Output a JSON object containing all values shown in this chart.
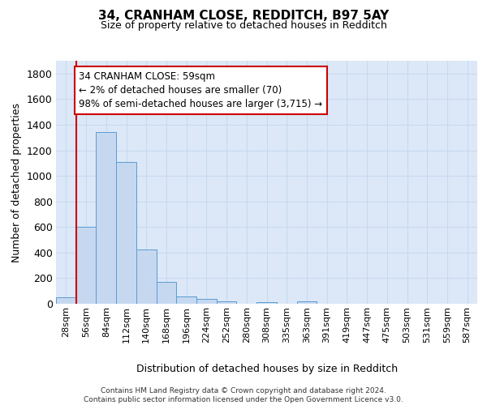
{
  "title1": "34, CRANHAM CLOSE, REDDITCH, B97 5AY",
  "title2": "Size of property relative to detached houses in Redditch",
  "xlabel": "Distribution of detached houses by size in Redditch",
  "ylabel": "Number of detached properties",
  "bin_labels": [
    "28sqm",
    "56sqm",
    "84sqm",
    "112sqm",
    "140sqm",
    "168sqm",
    "196sqm",
    "224sqm",
    "252sqm",
    "280sqm",
    "308sqm",
    "335sqm",
    "363sqm",
    "391sqm",
    "419sqm",
    "447sqm",
    "475sqm",
    "503sqm",
    "531sqm",
    "559sqm",
    "587sqm"
  ],
  "bar_values": [
    50,
    600,
    1340,
    1110,
    425,
    170,
    60,
    40,
    20,
    0,
    15,
    0,
    20,
    0,
    0,
    0,
    0,
    0,
    0,
    0,
    0
  ],
  "bar_color": "#c5d8f0",
  "bar_edge_color": "#5b9bd5",
  "vline_color": "#cc0000",
  "annotation_line1": "34 CRANHAM CLOSE: 59sqm",
  "annotation_line2": "← 2% of detached houses are smaller (70)",
  "annotation_line3": "98% of semi-detached houses are larger (3,715) →",
  "ylim_max": 1900,
  "yticks": [
    0,
    200,
    400,
    600,
    800,
    1000,
    1200,
    1400,
    1600,
    1800
  ],
  "grid_color": "#c8d8ee",
  "bg_color": "#dce8f8",
  "title1_fontsize": 11,
  "title2_fontsize": 9,
  "footer": "Contains HM Land Registry data © Crown copyright and database right 2024.\nContains public sector information licensed under the Open Government Licence v3.0."
}
